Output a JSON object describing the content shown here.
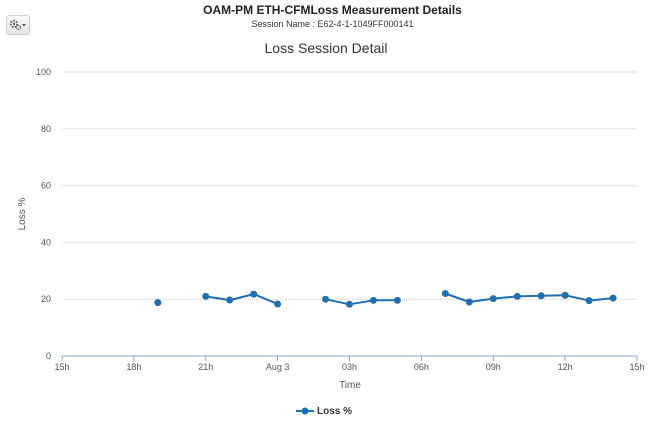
{
  "header": {
    "title": "OAM-PM ETH-CFMLoss Measurement Details",
    "session": "Session Name : E62-4-1-1049FF000141"
  },
  "toolbar": {
    "settings_icon": "gear-icon",
    "dropdown_icon": "caret-down-icon"
  },
  "colors": {
    "series": "#1f6fb2",
    "grid": "#c8c8c8",
    "axis": "#8aa4c8",
    "text": "#555555"
  },
  "chart_data": {
    "type": "line",
    "title": "Loss Session Detail",
    "xlabel": "Time",
    "ylabel": "Loss %",
    "ylim": [
      0,
      100
    ],
    "xlim": [
      0,
      24
    ],
    "x_unit": "hours from 15h (Aug 2)",
    "yticks": [
      0,
      20,
      40,
      60,
      80,
      100
    ],
    "xticks": [
      {
        "x": 0,
        "label": "15h"
      },
      {
        "x": 3,
        "label": "18h"
      },
      {
        "x": 6,
        "label": "21h"
      },
      {
        "x": 9,
        "label": "Aug 3"
      },
      {
        "x": 12,
        "label": "03h"
      },
      {
        "x": 15,
        "label": "06h"
      },
      {
        "x": 18,
        "label": "09h"
      },
      {
        "x": 21,
        "label": "12h"
      },
      {
        "x": 24,
        "label": "15h"
      }
    ],
    "grid": true,
    "legend_position": "bottom-center",
    "series": [
      {
        "name": "Loss %",
        "segments": [
          [
            {
              "x": 4,
              "y": 18.8
            }
          ],
          [
            {
              "x": 6,
              "y": 21
            },
            {
              "x": 7,
              "y": 19.7
            },
            {
              "x": 8,
              "y": 21.8
            },
            {
              "x": 9,
              "y": 18.3
            }
          ],
          [
            {
              "x": 11,
              "y": 20
            },
            {
              "x": 12,
              "y": 18.2
            },
            {
              "x": 13,
              "y": 19.6
            },
            {
              "x": 14,
              "y": 19.6
            }
          ],
          [
            {
              "x": 16,
              "y": 22
            },
            {
              "x": 17,
              "y": 19
            },
            {
              "x": 18,
              "y": 20.2
            },
            {
              "x": 19,
              "y": 21
            },
            {
              "x": 20,
              "y": 21.2
            },
            {
              "x": 21,
              "y": 21.4
            },
            {
              "x": 22,
              "y": 19.5
            },
            {
              "x": 23,
              "y": 20.4
            }
          ]
        ]
      }
    ]
  }
}
